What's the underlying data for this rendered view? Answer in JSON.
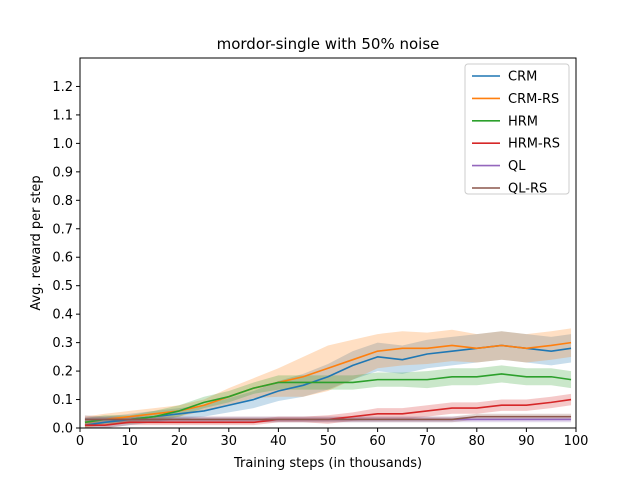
{
  "chart_data": {
    "type": "line",
    "title": "mordor-single with 50% noise",
    "xlabel": "Training steps (in thousands)",
    "ylabel": "Avg. reward per step",
    "xlim": [
      0,
      100
    ],
    "ylim": [
      0,
      1.3
    ],
    "xticks": [
      "0",
      "10",
      "20",
      "30",
      "40",
      "50",
      "60",
      "70",
      "80",
      "90",
      "100"
    ],
    "yticks": [
      "0.0",
      "0.1",
      "0.2",
      "0.3",
      "0.4",
      "0.5",
      "0.6",
      "0.7",
      "0.8",
      "0.9",
      "1.0",
      "1.1",
      "1.2"
    ],
    "grid": false,
    "legend_position": "top-right",
    "x": [
      1,
      5,
      10,
      15,
      20,
      25,
      30,
      35,
      40,
      45,
      50,
      55,
      60,
      65,
      70,
      75,
      80,
      85,
      90,
      95,
      99
    ],
    "series": [
      {
        "name": "CRM",
        "color": "#1f77b4",
        "values": [
          0.01,
          0.02,
          0.03,
          0.04,
          0.05,
          0.06,
          0.08,
          0.1,
          0.13,
          0.15,
          0.18,
          0.22,
          0.25,
          0.24,
          0.26,
          0.27,
          0.28,
          0.29,
          0.28,
          0.27,
          0.28
        ],
        "band": [
          0.025,
          0.02,
          0.02,
          0.02,
          0.02,
          0.02,
          0.025,
          0.03,
          0.035,
          0.04,
          0.045,
          0.05,
          0.05,
          0.05,
          0.05,
          0.05,
          0.05,
          0.05,
          0.05,
          0.05,
          0.05
        ]
      },
      {
        "name": "CRM-RS",
        "color": "#ff7f0e",
        "values": [
          0.02,
          0.03,
          0.04,
          0.05,
          0.06,
          0.08,
          0.11,
          0.14,
          0.16,
          0.18,
          0.21,
          0.24,
          0.27,
          0.28,
          0.28,
          0.29,
          0.28,
          0.29,
          0.28,
          0.29,
          0.3
        ],
        "band": [
          0.02,
          0.02,
          0.02,
          0.02,
          0.02,
          0.02,
          0.03,
          0.035,
          0.05,
          0.07,
          0.08,
          0.07,
          0.06,
          0.06,
          0.055,
          0.055,
          0.05,
          0.05,
          0.05,
          0.05,
          0.05
        ]
      },
      {
        "name": "HRM",
        "color": "#2ca02c",
        "values": [
          0.02,
          0.03,
          0.03,
          0.04,
          0.06,
          0.09,
          0.11,
          0.14,
          0.16,
          0.16,
          0.16,
          0.16,
          0.17,
          0.17,
          0.17,
          0.18,
          0.18,
          0.19,
          0.18,
          0.18,
          0.17
        ],
        "band": [
          0.015,
          0.015,
          0.015,
          0.02,
          0.02,
          0.02,
          0.02,
          0.02,
          0.025,
          0.025,
          0.025,
          0.025,
          0.025,
          0.025,
          0.03,
          0.03,
          0.03,
          0.03,
          0.03,
          0.03,
          0.03
        ]
      },
      {
        "name": "HRM-RS",
        "color": "#d62728",
        "values": [
          0.01,
          0.01,
          0.02,
          0.02,
          0.02,
          0.02,
          0.02,
          0.02,
          0.03,
          0.03,
          0.03,
          0.04,
          0.05,
          0.05,
          0.06,
          0.07,
          0.07,
          0.08,
          0.08,
          0.09,
          0.1
        ],
        "band": [
          0.01,
          0.01,
          0.01,
          0.01,
          0.01,
          0.01,
          0.01,
          0.01,
          0.01,
          0.01,
          0.015,
          0.015,
          0.02,
          0.02,
          0.02,
          0.02,
          0.02,
          0.02,
          0.02,
          0.02,
          0.02
        ]
      },
      {
        "name": "QL",
        "color": "#9467bd",
        "values": [
          0.03,
          0.03,
          0.03,
          0.03,
          0.03,
          0.03,
          0.03,
          0.03,
          0.03,
          0.03,
          0.03,
          0.03,
          0.03,
          0.03,
          0.03,
          0.03,
          0.03,
          0.03,
          0.03,
          0.03,
          0.03
        ],
        "band": [
          0.01,
          0.01,
          0.01,
          0.01,
          0.01,
          0.01,
          0.01,
          0.01,
          0.01,
          0.01,
          0.01,
          0.01,
          0.01,
          0.01,
          0.01,
          0.01,
          0.01,
          0.01,
          0.01,
          0.01,
          0.01
        ]
      },
      {
        "name": "QL-RS",
        "color": "#8c564b",
        "values": [
          0.03,
          0.03,
          0.03,
          0.03,
          0.03,
          0.03,
          0.03,
          0.03,
          0.03,
          0.03,
          0.03,
          0.03,
          0.03,
          0.03,
          0.03,
          0.03,
          0.04,
          0.04,
          0.04,
          0.04,
          0.04
        ],
        "band": [
          0.015,
          0.01,
          0.01,
          0.01,
          0.01,
          0.01,
          0.01,
          0.01,
          0.01,
          0.01,
          0.01,
          0.01,
          0.01,
          0.01,
          0.01,
          0.01,
          0.01,
          0.01,
          0.01,
          0.01,
          0.01
        ]
      }
    ]
  }
}
